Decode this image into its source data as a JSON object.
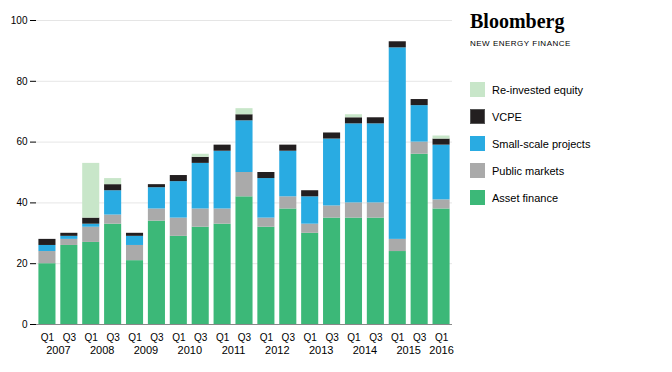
{
  "chart_data": {
    "type": "bar",
    "stacked": true,
    "categories": [
      "Q1",
      "Q3",
      "Q1",
      "Q3",
      "Q1",
      "Q3",
      "Q1",
      "Q3",
      "Q1",
      "Q3",
      "Q1",
      "Q3",
      "Q1",
      "Q3",
      "Q1",
      "Q3",
      "Q1",
      "Q3",
      "Q1"
    ],
    "years": [
      2007,
      2007,
      2008,
      2008,
      2009,
      2009,
      2010,
      2010,
      2011,
      2011,
      2012,
      2012,
      2013,
      2013,
      2014,
      2014,
      2015,
      2015,
      2016
    ],
    "series": [
      {
        "name": "Asset finance",
        "color": "#3cb878",
        "values": [
          20,
          26,
          27,
          33,
          21,
          34,
          29,
          32,
          33,
          42,
          32,
          38,
          30,
          35,
          35,
          35,
          24,
          56,
          38
        ]
      },
      {
        "name": "Public markets",
        "color": "#aaaaaa",
        "values": [
          4,
          2,
          5,
          3,
          5,
          4,
          6,
          6,
          5,
          8,
          3,
          4,
          3,
          4,
          5,
          5,
          4,
          4,
          3
        ]
      },
      {
        "name": "Small-scale projects",
        "color": "#29abe2",
        "values": [
          2,
          1,
          1,
          8,
          3,
          7,
          12,
          15,
          19,
          17,
          13,
          15,
          9,
          22,
          26,
          26,
          63,
          12,
          18
        ]
      },
      {
        "name": "VCPE",
        "color": "#231f20",
        "values": [
          2,
          1,
          2,
          2,
          1,
          1,
          2,
          2,
          2,
          2,
          2,
          2,
          2,
          2,
          2,
          2,
          2,
          2,
          2
        ]
      },
      {
        "name": "Re-invested equity",
        "color": "#c8e6c9",
        "values": [
          0,
          0,
          18,
          2,
          0,
          0,
          0,
          1,
          0,
          2,
          0,
          0,
          0,
          0,
          1,
          0,
          0,
          0,
          1
        ]
      }
    ],
    "annotations": [
      "Bloomberg",
      "NEW ENERGY FINANCE"
    ],
    "ylim": [
      0,
      100
    ],
    "yticks": [
      0,
      20,
      40,
      60,
      80,
      100
    ],
    "grid": true,
    "legend": "right"
  }
}
